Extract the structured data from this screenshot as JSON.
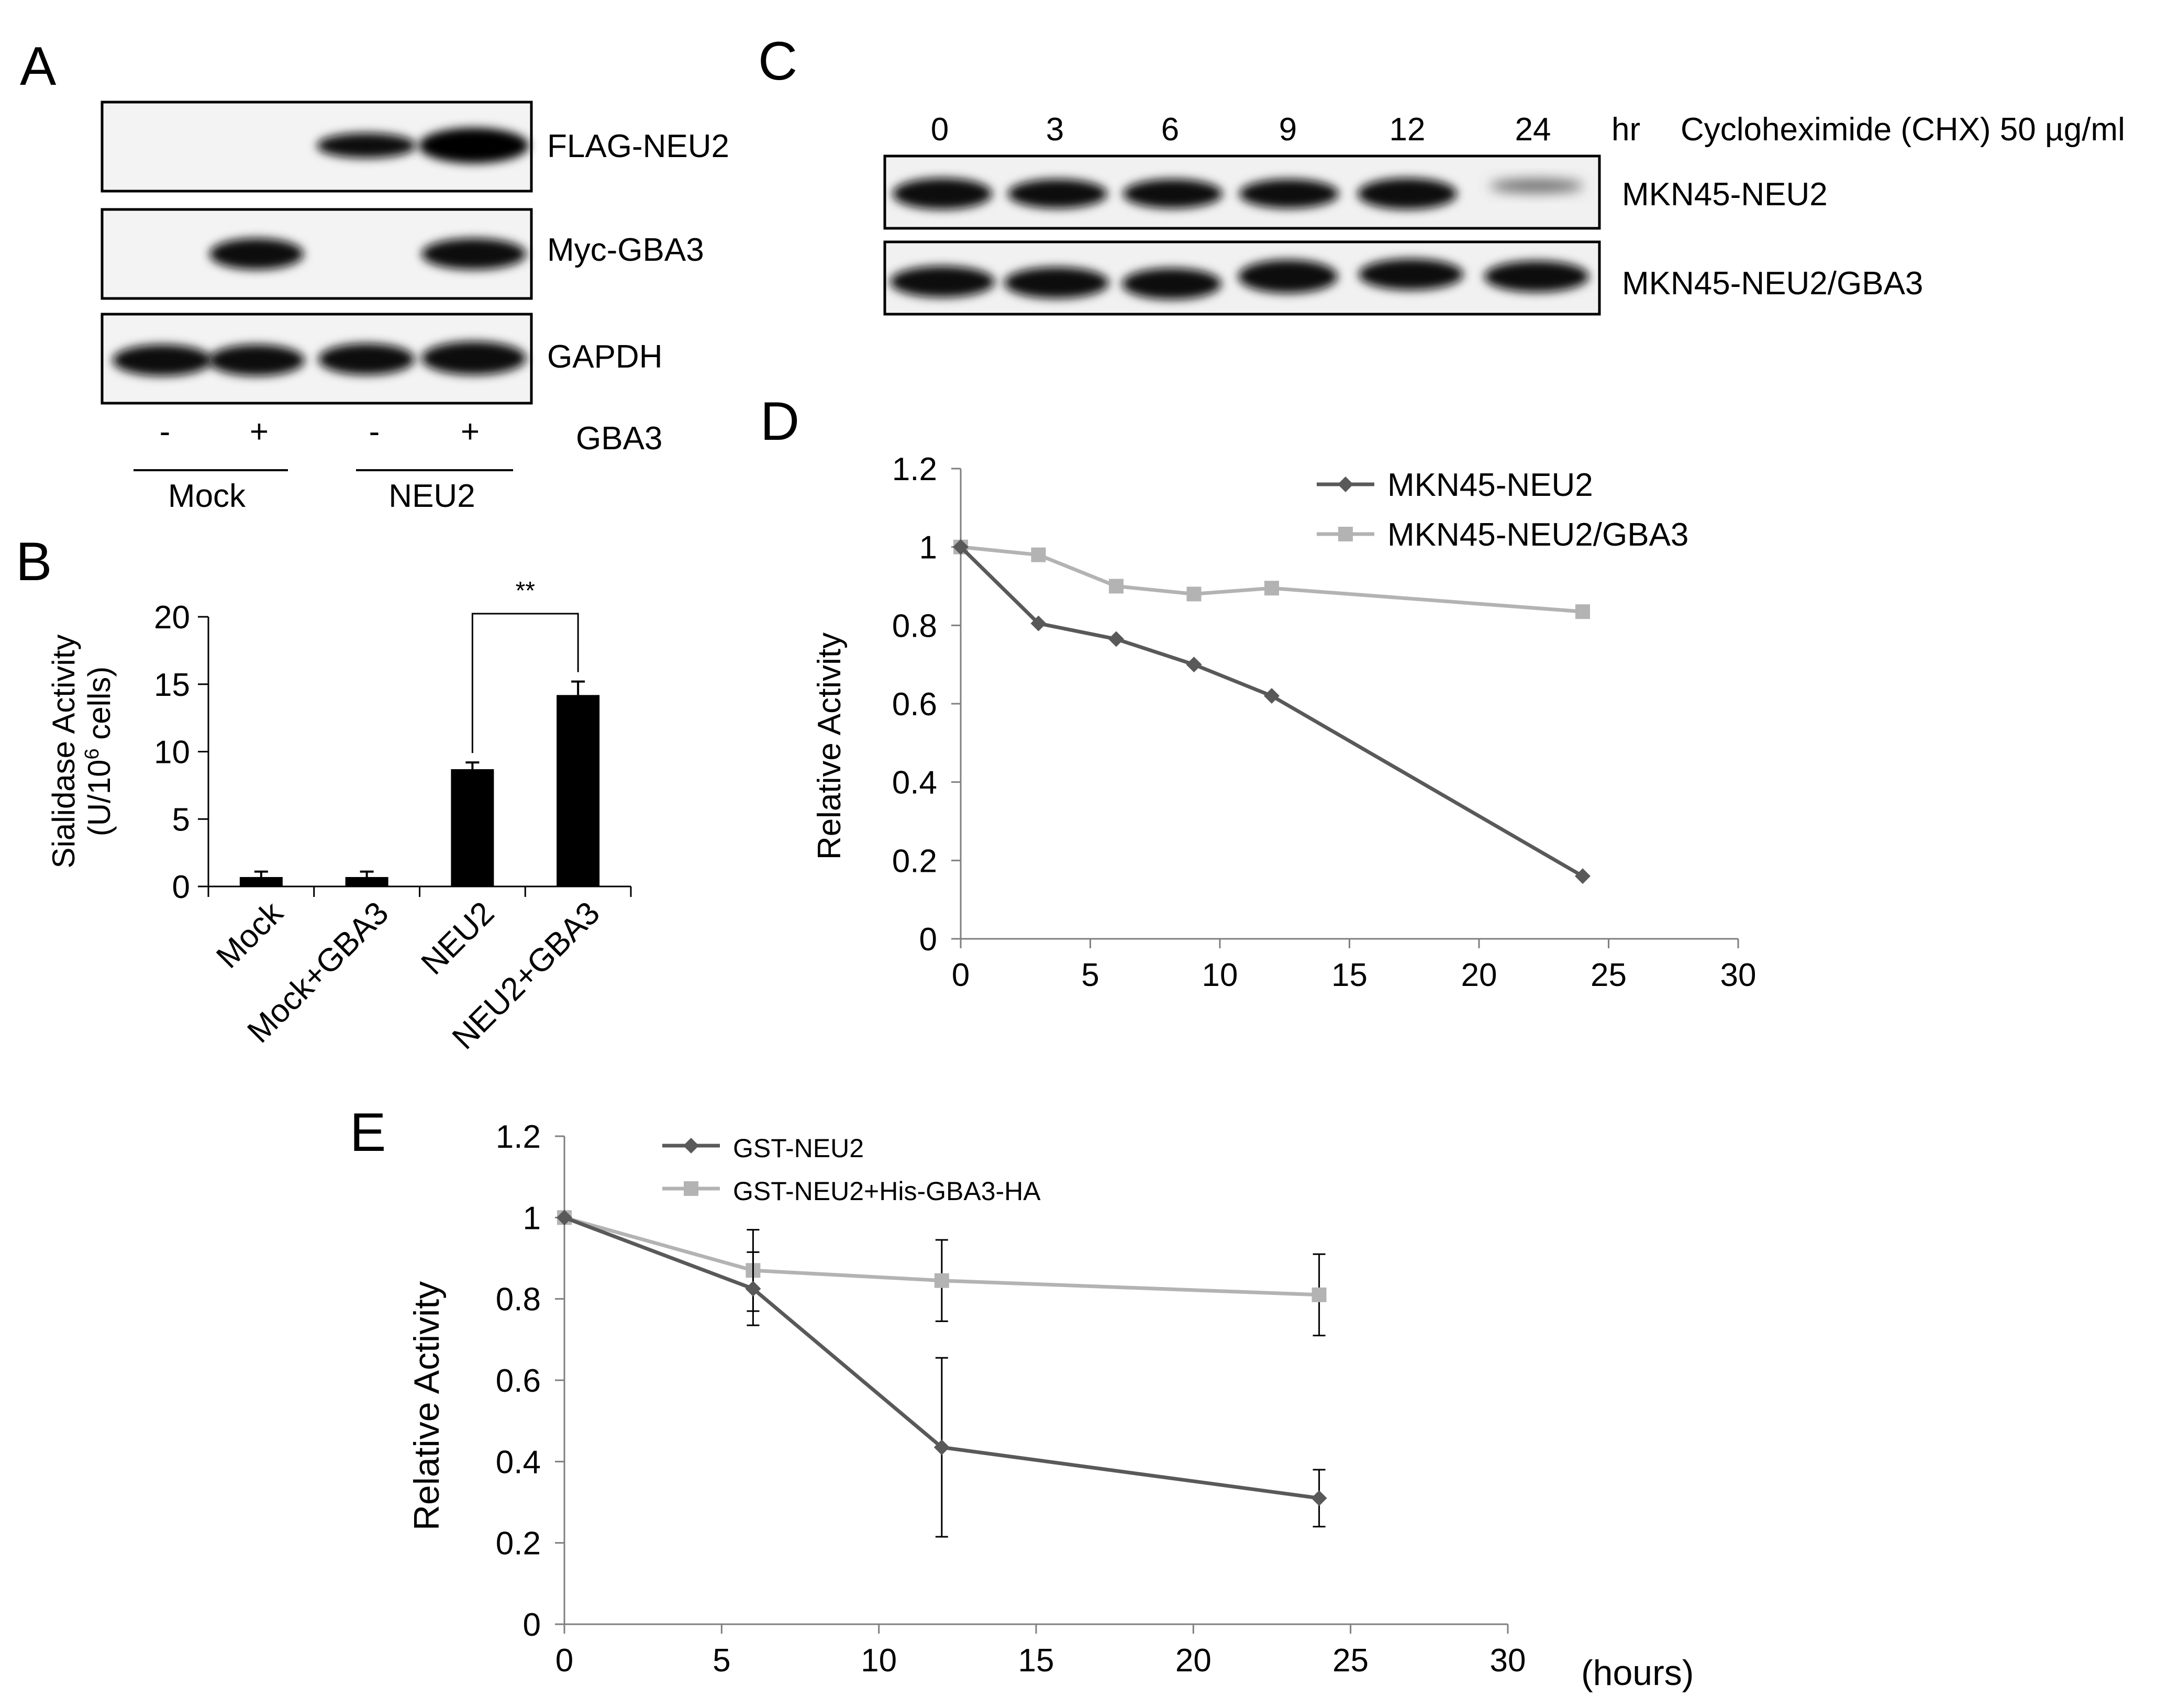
{
  "panel_labels": {
    "a": "A",
    "b": "B",
    "c": "C",
    "d": "D",
    "e": "E"
  },
  "blot_a": {
    "rows": [
      "FLAG-NEU2",
      "Myc-GBA3",
      "GAPDH"
    ],
    "gba3_label": "GBA3",
    "lane_signs": [
      "-",
      "+",
      "-",
      "+"
    ],
    "groups": [
      "Mock",
      "NEU2"
    ]
  },
  "blot_c": {
    "timepoints": [
      "0",
      "3",
      "6",
      "9",
      "12",
      "24"
    ],
    "unit": "hr",
    "treatment": "Cycloheximide (CHX) 50 µg/ml",
    "rows": [
      "MKN45-NEU2",
      "MKN45-NEU2/GBA3"
    ]
  },
  "chart_data": [
    {
      "id": "B",
      "type": "bar",
      "categories": [
        "Mock",
        "Mock+GBA3",
        "NEU2",
        "NEU2+GBA3"
      ],
      "values": [
        0.7,
        0.7,
        8.7,
        14.2
      ],
      "errors": [
        0.4,
        0.4,
        0.5,
        1.0
      ],
      "ylabel_line1": "Sialidase Activity",
      "ylabel_line2_pre": "(U/10",
      "ylabel_line2_sup": "6",
      "ylabel_line2_post": " cells)",
      "ylim": [
        0,
        20
      ],
      "yticks": [
        "0",
        "5",
        "10",
        "15",
        "20"
      ],
      "significance": {
        "between": [
          "NEU2",
          "NEU2+GBA3"
        ],
        "label": "**"
      },
      "bar_color": "#000000"
    },
    {
      "id": "D",
      "type": "line",
      "x": [
        0,
        3,
        6,
        9,
        12,
        24
      ],
      "series": [
        {
          "name": "MKN45-NEU2",
          "values": [
            1.0,
            0.805,
            0.765,
            0.7,
            0.62,
            0.16
          ],
          "marker": "diamond",
          "color": "#595959"
        },
        {
          "name": "MKN45-NEU2/GBA3",
          "values": [
            1.0,
            0.98,
            0.9,
            0.88,
            0.895,
            0.835
          ],
          "marker": "square",
          "color": "#b3b3b3"
        }
      ],
      "ylabel": "Relative Activity",
      "xlim": [
        0,
        30
      ],
      "ylim": [
        0,
        1.2
      ],
      "xticks": [
        "0",
        "5",
        "10",
        "15",
        "20",
        "25",
        "30"
      ],
      "yticks": [
        "0",
        "0.2",
        "0.4",
        "0.6",
        "0.8",
        "1",
        "1.2"
      ],
      "legend": "top-right"
    },
    {
      "id": "E",
      "type": "line",
      "x": [
        0,
        6,
        12,
        24
      ],
      "series": [
        {
          "name": "GST-NEU2",
          "values": [
            1.0,
            0.825,
            0.435,
            0.31
          ],
          "errors": [
            0,
            0.09,
            0.22,
            0.07
          ],
          "marker": "diamond",
          "color": "#595959"
        },
        {
          "name": "GST-NEU2+His-GBA3-HA",
          "values": [
            1.0,
            0.87,
            0.845,
            0.81
          ],
          "errors": [
            0,
            0.1,
            0.1,
            0.1
          ],
          "marker": "square",
          "color": "#b3b3b3"
        }
      ],
      "ylabel": "Relative Activity",
      "xlabel": "(hours)",
      "xlim": [
        0,
        30
      ],
      "ylim": [
        0,
        1.2
      ],
      "xticks": [
        "0",
        "5",
        "10",
        "15",
        "20",
        "25",
        "30"
      ],
      "yticks": [
        "0",
        "0.2",
        "0.4",
        "0.6",
        "0.8",
        "1",
        "1.2"
      ],
      "legend": "top"
    }
  ]
}
